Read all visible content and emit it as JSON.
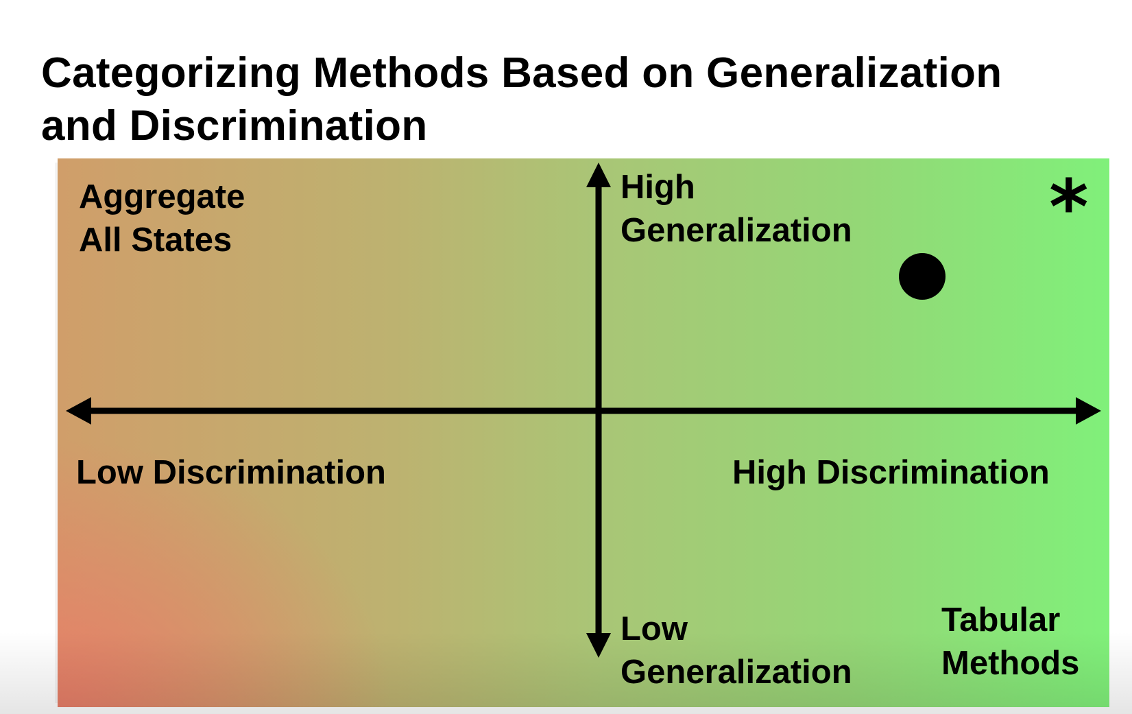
{
  "title": {
    "line1": "Categorizing Methods Based on Generalization",
    "line2": "and Discrimination"
  },
  "quadrant_labels": {
    "top_left": [
      "Aggregate",
      "All States"
    ],
    "y_top": [
      "High",
      "Generalization"
    ],
    "y_bottom": [
      "Low",
      "Generalization"
    ],
    "bottom_right": [
      "Tabular",
      "Methods"
    ]
  },
  "axis_labels": {
    "x_left": "Low Discrimination",
    "x_right": "High Discrimination"
  },
  "markers": {
    "star_glyph": "*",
    "dot_icon": "filled-circle"
  },
  "colors": {
    "background_low": "#e87c68",
    "background_high": "#80f07a",
    "axis": "#000000"
  }
}
